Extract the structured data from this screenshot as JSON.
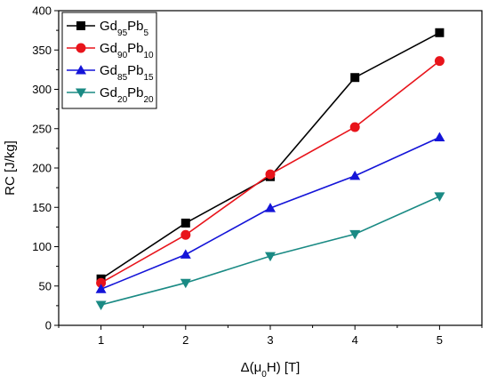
{
  "chart_data": {
    "type": "line",
    "x": [
      1,
      2,
      3,
      4,
      5
    ],
    "xlabel_parts": [
      "Δ(μ",
      "0",
      "H) [T]"
    ],
    "ylabel": "RC [J/kg]",
    "xlim": [
      0.5,
      5.5
    ],
    "ylim": [
      0,
      400
    ],
    "xticks": [
      "1",
      "2",
      "3",
      "4",
      "5"
    ],
    "yticks": [
      "0",
      "50",
      "100",
      "150",
      "200",
      "250",
      "300",
      "350",
      "400"
    ],
    "grid": false,
    "legend_position": "top-left",
    "series": [
      {
        "name": "Gd95Pb5",
        "name_parts": [
          "Gd",
          "95",
          "Pb",
          "5"
        ],
        "color": "#000000",
        "marker": "square",
        "values": [
          59,
          130,
          189,
          315,
          372
        ]
      },
      {
        "name": "Gd90Pb10",
        "name_parts": [
          "Gd",
          "90",
          "Pb",
          "10"
        ],
        "color": "#e8141b",
        "marker": "circle",
        "values": [
          54,
          115,
          192,
          252,
          336
        ]
      },
      {
        "name": "Gd85Pb15",
        "name_parts": [
          "Gd",
          "85",
          "Pb",
          "15"
        ],
        "color": "#1414d8",
        "marker": "triangle-up",
        "values": [
          46,
          90,
          149,
          190,
          239
        ]
      },
      {
        "name": "Gd20Pb20",
        "name_parts": [
          "Gd",
          "20",
          "Pb",
          "20"
        ],
        "color": "#1a8a84",
        "marker": "triangle-down",
        "values": [
          26,
          54,
          88,
          116,
          164
        ]
      }
    ]
  }
}
